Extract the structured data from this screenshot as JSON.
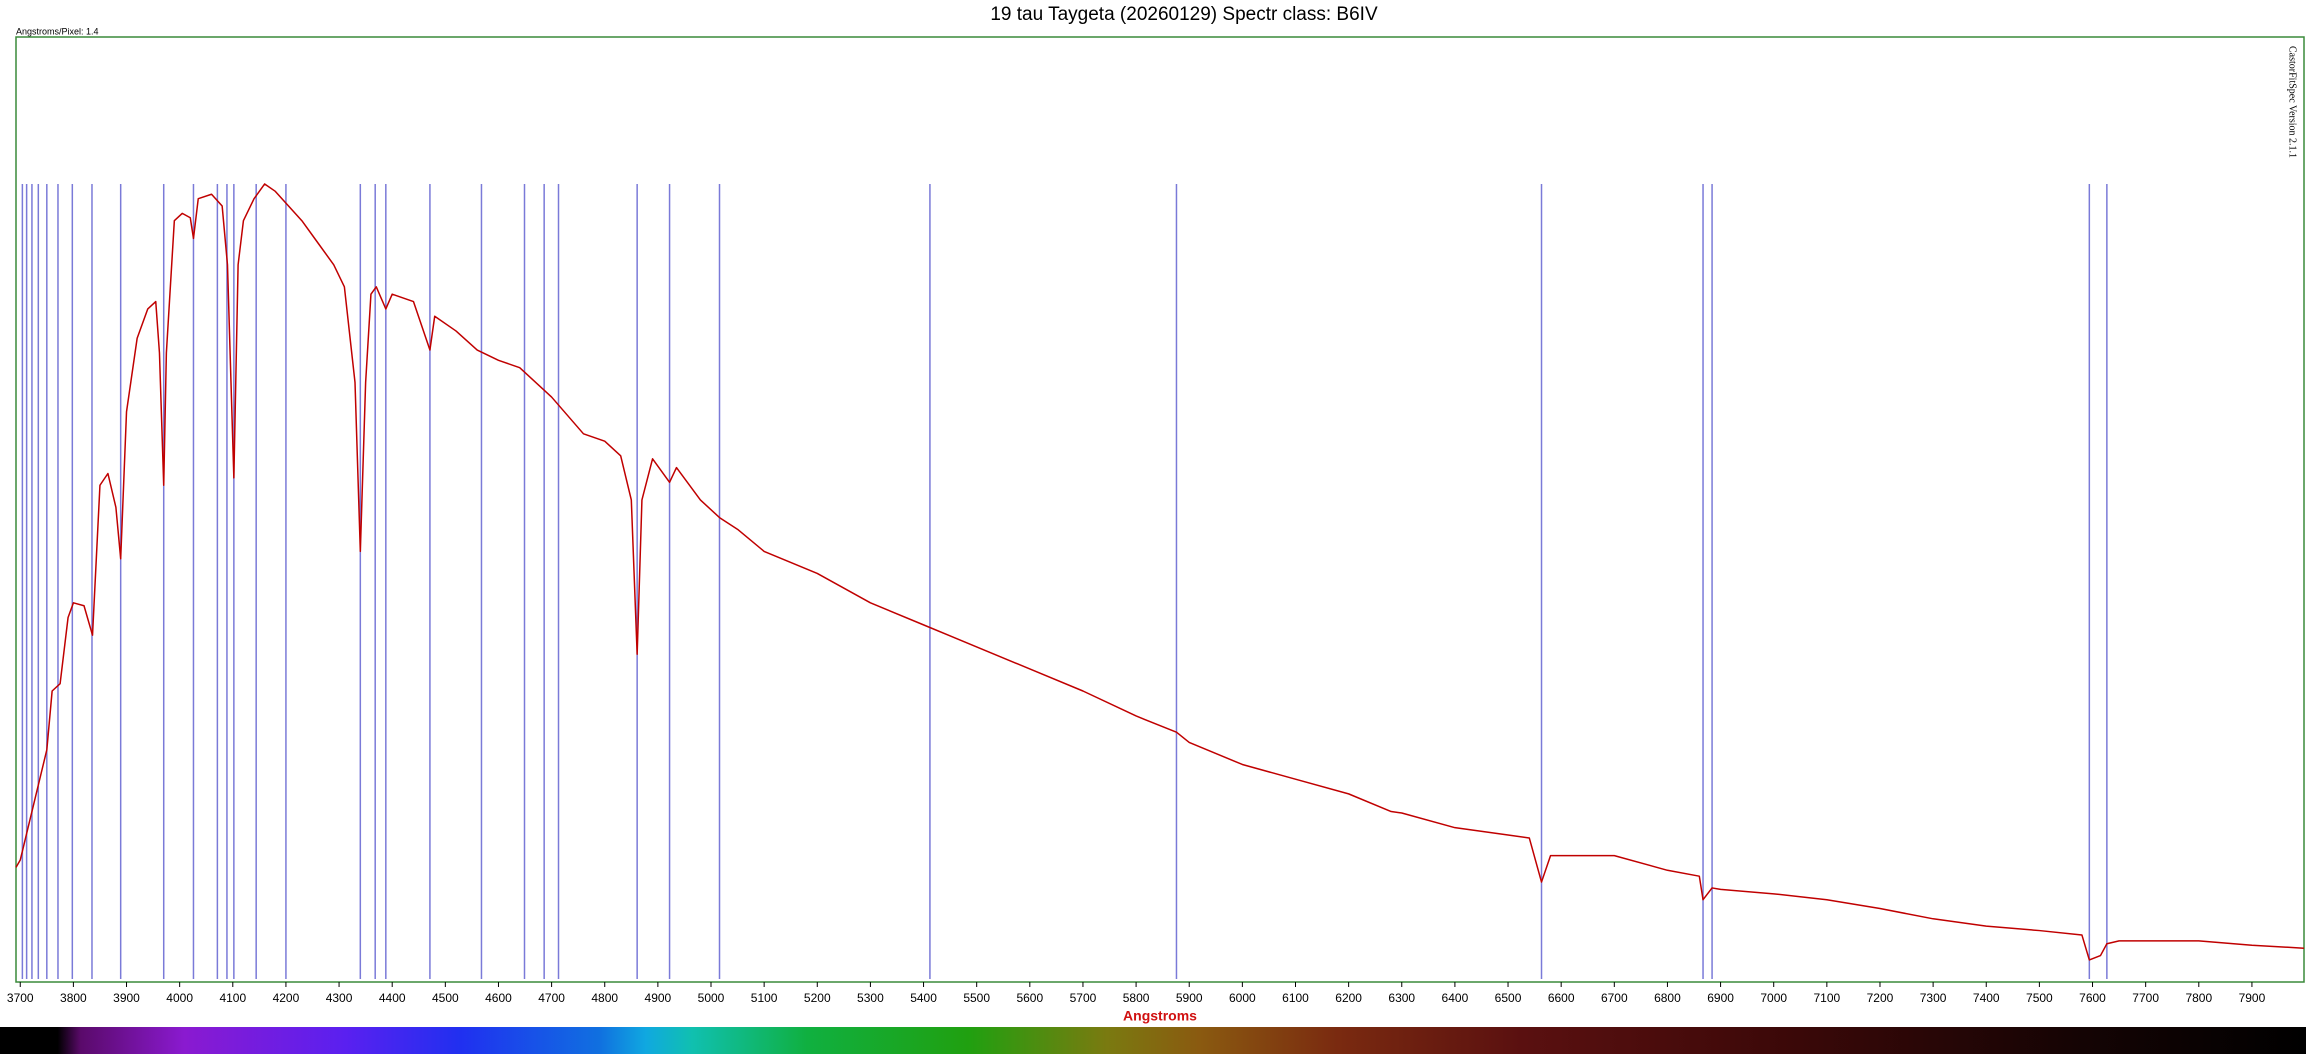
{
  "chart_data": {
    "type": "line",
    "title": "19 tau Taygeta  (20260129) Spectr class: B6IV",
    "corner_note": "Angstroms/Pixel: 1.4",
    "side_note": "CastorFitSpec Version 2.1.1",
    "x_label": "Angstroms",
    "color": "#c00000",
    "marker_color": "#7a7ad8",
    "xlim": [
      3692,
      7998
    ],
    "ylim": [
      0,
      643
    ],
    "xticks": [
      3700,
      3800,
      3900,
      4000,
      4100,
      4200,
      4300,
      4400,
      4500,
      4600,
      4700,
      4800,
      4900,
      5000,
      5100,
      5200,
      5300,
      5400,
      5500,
      5600,
      5700,
      5800,
      5900,
      6000,
      6100,
      6200,
      6300,
      6400,
      6500,
      6600,
      6700,
      6800,
      6900,
      7000,
      7100,
      7200,
      7300,
      7400,
      7500,
      7600,
      7700,
      7800,
      7900
    ],
    "marker_lines": [
      3704,
      3712,
      3722,
      3734,
      3750,
      3771,
      3798,
      3835,
      3889,
      3970,
      4026,
      4071,
      4089,
      4102,
      4144,
      4200,
      4340,
      4368,
      4388,
      4471,
      4568,
      4649,
      4686,
      4713,
      4861,
      4922,
      5016,
      5412,
      5876,
      6563,
      6867,
      6884,
      7594,
      7627
    ],
    "x": [
      3692,
      3700,
      3730,
      3750,
      3760,
      3775,
      3790,
      3800,
      3820,
      3836,
      3850,
      3865,
      3880,
      3889,
      3900,
      3920,
      3940,
      3955,
      3962,
      3970,
      3975,
      3990,
      4005,
      4020,
      4026,
      4035,
      4060,
      4080,
      4090,
      4102,
      4110,
      4120,
      4140,
      4160,
      4180,
      4200,
      4230,
      4260,
      4290,
      4310,
      4330,
      4340,
      4350,
      4360,
      4370,
      4388,
      4400,
      4440,
      4471,
      4480,
      4520,
      4560,
      4600,
      4640,
      4700,
      4760,
      4800,
      4830,
      4850,
      4861,
      4870,
      4890,
      4922,
      4935,
      4980,
      5016,
      5050,
      5100,
      5200,
      5300,
      5400,
      5500,
      5600,
      5700,
      5800,
      5876,
      5900,
      6000,
      6100,
      6200,
      6280,
      6300,
      6400,
      6500,
      6540,
      6563,
      6580,
      6700,
      6800,
      6860,
      6867,
      6884,
      6900,
      7000,
      7100,
      7200,
      7300,
      7400,
      7500,
      7580,
      7594,
      7615,
      7627,
      7650,
      7700,
      7800,
      7900,
      7998
    ],
    "values": [
      78,
      83,
      128,
      158,
      198,
      203,
      248,
      258,
      256,
      236,
      338,
      346,
      323,
      288,
      388,
      438,
      458,
      463,
      428,
      338,
      428,
      518,
      523,
      520,
      506,
      533,
      536,
      528,
      488,
      343,
      488,
      518,
      533,
      543,
      538,
      530,
      518,
      503,
      488,
      473,
      408,
      293,
      408,
      468,
      473,
      458,
      468,
      463,
      430,
      453,
      443,
      430,
      423,
      418,
      398,
      373,
      368,
      358,
      328,
      223,
      328,
      356,
      340,
      350,
      328,
      316,
      308,
      293,
      278,
      258,
      243,
      228,
      213,
      198,
      181,
      170,
      163,
      148,
      138,
      128,
      116,
      115,
      105,
      100,
      98,
      68,
      86,
      86,
      76,
      72,
      56,
      64,
      63,
      60,
      56,
      50,
      43,
      38,
      35,
      32,
      15,
      18,
      26,
      28,
      28,
      28,
      25,
      23
    ]
  }
}
